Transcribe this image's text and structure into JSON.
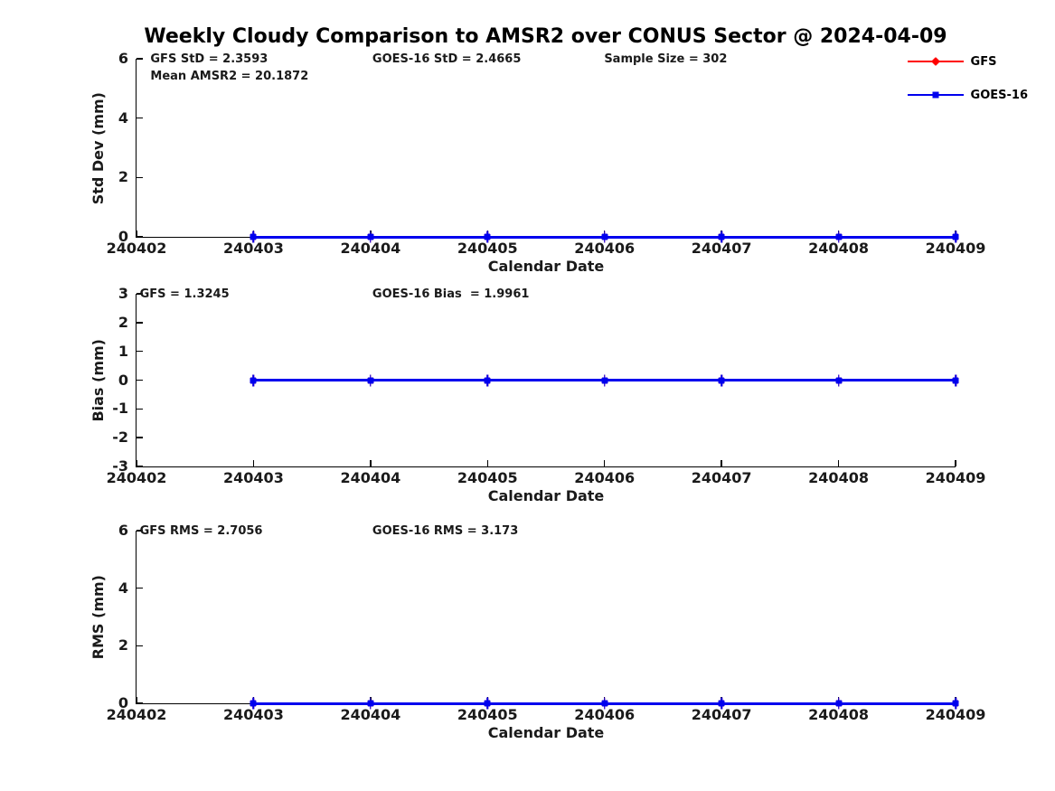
{
  "title": "Weekly Cloudy Comparison to AMSR2 over CONUS Sector @ 2024-04-09",
  "colors": {
    "gfs": "#ff0000",
    "goes16": "#0000ee",
    "axis": "#000000",
    "text": "#1a1a1a"
  },
  "legend": [
    {
      "label": "GFS",
      "color": "#ff0000",
      "marker": "diamond"
    },
    {
      "label": "GOES-16",
      "color": "#0000ee",
      "marker": "square"
    }
  ],
  "x_axis": {
    "label": "Calendar Date",
    "ticks": [
      "240402",
      "240403",
      "240404",
      "240405",
      "240406",
      "240407",
      "240408",
      "240409"
    ]
  },
  "chart_data": [
    {
      "type": "line",
      "title": "",
      "ylabel": "Std Dev (mm)",
      "xlabel": "Calendar Date",
      "ylim": [
        0,
        6
      ],
      "yticks": [
        0,
        2,
        4,
        6
      ],
      "x": [
        "240403",
        "240404",
        "240405",
        "240406",
        "240407",
        "240408",
        "240409"
      ],
      "series": [
        {
          "name": "GFS",
          "color": "#ff0000",
          "marker": "diamond",
          "values": [
            0,
            0,
            0,
            0,
            0,
            0,
            0
          ]
        },
        {
          "name": "GOES-16",
          "color": "#0000ee",
          "marker": "square",
          "values": [
            0,
            0,
            0,
            0,
            0,
            0,
            0
          ]
        }
      ],
      "annotations": [
        "GFS StD = 2.3593",
        "Mean AMSR2 = 20.1872",
        "GOES-16 StD = 2.4665",
        "Sample Size = 302"
      ]
    },
    {
      "type": "line",
      "title": "",
      "ylabel": "Bias (mm)",
      "xlabel": "Calendar Date",
      "ylim": [
        -3,
        3
      ],
      "yticks": [
        3,
        2,
        1,
        0,
        -1,
        -2,
        -3
      ],
      "x": [
        "240403",
        "240404",
        "240405",
        "240406",
        "240407",
        "240408",
        "240409"
      ],
      "series": [
        {
          "name": "GFS",
          "color": "#ff0000",
          "marker": "diamond",
          "values": [
            0,
            0,
            0,
            0,
            0,
            0,
            0
          ]
        },
        {
          "name": "GOES-16",
          "color": "#0000ee",
          "marker": "square",
          "values": [
            0,
            0,
            0,
            0,
            0,
            0,
            0
          ]
        }
      ],
      "annotations": [
        "GFS = 1.3245",
        "GOES-16 Bias  = 1.9961"
      ]
    },
    {
      "type": "line",
      "title": "",
      "ylabel": "RMS (mm)",
      "xlabel": "Calendar Date",
      "ylim": [
        0,
        6
      ],
      "yticks": [
        0,
        2,
        4,
        6
      ],
      "x": [
        "240403",
        "240404",
        "240405",
        "240406",
        "240407",
        "240408",
        "240409"
      ],
      "series": [
        {
          "name": "GFS",
          "color": "#ff0000",
          "marker": "diamond",
          "values": [
            0,
            0,
            0,
            0,
            0,
            0,
            0
          ]
        },
        {
          "name": "GOES-16",
          "color": "#0000ee",
          "marker": "square",
          "values": [
            0,
            0,
            0,
            0,
            0,
            0,
            0
          ]
        }
      ],
      "annotations": [
        "GFS RMS = 2.7056",
        "GOES-16 RMS = 3.173"
      ]
    }
  ]
}
